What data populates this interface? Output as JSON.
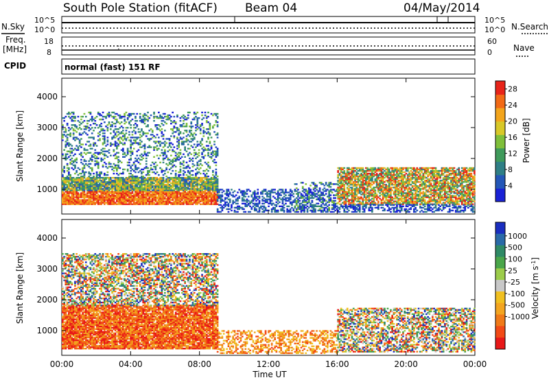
{
  "header": {
    "station": "South Pole Station (fitACF)",
    "beam": "Beam 04",
    "date": "04/May/2014"
  },
  "top_panels": {
    "nsky_label": "N.Sky",
    "nsearch_label": "N.Search",
    "ticks_top": "10^5",
    "ticks_bottom": "10^0",
    "freq_label_line1": "Freq.",
    "freq_label_line2": "[MHz]",
    "freq_ticks": [
      "18",
      "8"
    ],
    "nave_label": "Nave",
    "nave_ticks": [
      "60",
      "0"
    ],
    "cpid_label": "CPID",
    "cpid_text": "normal (fast) 151 RF"
  },
  "colors": {
    "power": [
      "#1a22d6",
      "#2457b8",
      "#2f7f86",
      "#3f9a5b",
      "#7fbf3a",
      "#d8c828",
      "#f3a51c",
      "#f26a16",
      "#e8241a"
    ],
    "velocity": [
      "#1a2ec0",
      "#2a6aa8",
      "#2f8a66",
      "#4aa64a",
      "#9ccc4a",
      "#c8c8c8",
      "#f0c020",
      "#f3a520",
      "#f07a18",
      "#f24a16",
      "#e81818"
    ]
  },
  "chart_data": [
    {
      "type": "heatmap",
      "title": "",
      "xlabel": "",
      "ylabel": "Slant Range [km]",
      "x_ticks": [
        "00:00",
        "04:00",
        "08:00",
        "12:00",
        "16:00",
        "20:00",
        "00:00"
      ],
      "xlim": [
        0,
        24
      ],
      "y_ticks": [
        "1000",
        "2000",
        "3000",
        "4000"
      ],
      "ylim": [
        200,
        4600
      ],
      "colorbar": {
        "label": "Power [dB]",
        "ticks": [
          "4",
          "8",
          "12",
          "16",
          "20",
          "24",
          "28"
        ],
        "range": [
          0,
          30
        ]
      },
      "regions": [
        {
          "t0": 0.0,
          "t1": 9.0,
          "r0": 500,
          "r1": 1400,
          "class": "strong"
        },
        {
          "t0": 0.0,
          "t1": 9.0,
          "r0": 1400,
          "r1": 3500,
          "class": "patchy"
        },
        {
          "t0": 9.0,
          "t1": 16.0,
          "r0": 250,
          "r1": 1000,
          "class": "weak"
        },
        {
          "t0": 13.5,
          "t1": 16.0,
          "r0": 250,
          "r1": 1200,
          "class": "patchy"
        },
        {
          "t0": 16.0,
          "t1": 24.0,
          "r0": 500,
          "r1": 1700,
          "class": "medium"
        },
        {
          "t0": 16.0,
          "t1": 24.0,
          "r0": 250,
          "r1": 500,
          "class": "weak"
        }
      ]
    },
    {
      "type": "heatmap",
      "title": "",
      "xlabel": "Time UT",
      "ylabel": "Slant Range [km]",
      "x_ticks": [
        "00:00",
        "04:00",
        "08:00",
        "12:00",
        "16:00",
        "20:00",
        "00:00"
      ],
      "xlim": [
        0,
        24
      ],
      "y_ticks": [
        "1000",
        "2000",
        "3000",
        "4000"
      ],
      "ylim": [
        200,
        4600
      ],
      "colorbar": {
        "label": "Velocity [m s^-1]",
        "ticks": [
          "1000",
          "500",
          "100",
          "25",
          "-25",
          "-100",
          "-500",
          "-1000"
        ],
        "range": [
          -1000,
          1000
        ]
      },
      "regions": [
        {
          "t0": 0.0,
          "t1": 9.0,
          "r0": 400,
          "r1": 1800,
          "class": "neg"
        },
        {
          "t0": 0.0,
          "t1": 9.0,
          "r0": 1800,
          "r1": 3500,
          "class": "mixed"
        },
        {
          "t0": 9.0,
          "t1": 16.0,
          "r0": 250,
          "r1": 1000,
          "class": "negweak"
        },
        {
          "t0": 16.0,
          "t1": 24.0,
          "r0": 300,
          "r1": 1700,
          "class": "mixed"
        }
      ]
    }
  ]
}
